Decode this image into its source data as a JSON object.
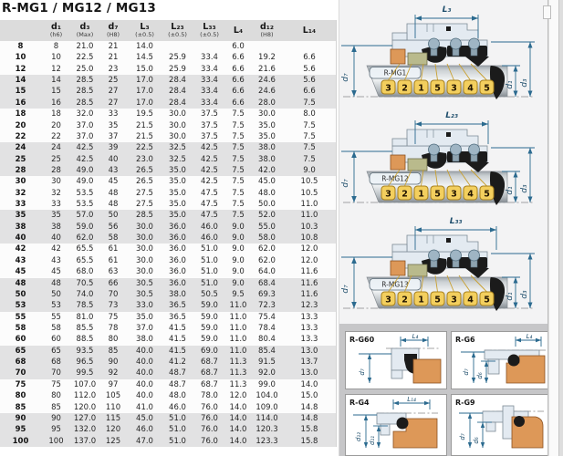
{
  "title": "R-MG1 / MG12 / MG13",
  "table": {
    "headers": [
      {
        "main": "",
        "note": ""
      },
      {
        "main": "d₁",
        "note": "(h6)"
      },
      {
        "main": "d₃",
        "note": "(Max)"
      },
      {
        "main": "d₇",
        "note": "(H8)"
      },
      {
        "main": "L₃",
        "note": "(±0.5)"
      },
      {
        "main": "L₂₃",
        "note": "(±0.5)"
      },
      {
        "main": "L₃₃",
        "note": "(±0.5)"
      },
      {
        "main": "L₄",
        "note": ""
      },
      {
        "main": "d₁₂",
        "note": "(H8)"
      },
      {
        "main": "L₁₄",
        "note": ""
      }
    ],
    "rows": [
      [
        "8",
        "8",
        "21.0",
        "21",
        "14.0",
        "",
        "",
        "6.0",
        "",
        ""
      ],
      [
        "10",
        "10",
        "22.5",
        "21",
        "14.5",
        "25.9",
        "33.4",
        "6.6",
        "19.2",
        "6.6"
      ],
      [
        "12",
        "12",
        "25.0",
        "23",
        "15.0",
        "25.9",
        "33.4",
        "6.6",
        "21.6",
        "5.6"
      ],
      [
        "14",
        "14",
        "28.5",
        "25",
        "17.0",
        "28.4",
        "33.4",
        "6.6",
        "24.6",
        "5.6"
      ],
      [
        "15",
        "15",
        "28.5",
        "27",
        "17.0",
        "28.4",
        "33.4",
        "6.6",
        "24.6",
        "6.6"
      ],
      [
        "16",
        "16",
        "28.5",
        "27",
        "17.0",
        "28.4",
        "33.4",
        "6.6",
        "28.0",
        "7.5"
      ],
      [
        "18",
        "18",
        "32.0",
        "33",
        "19.5",
        "30.0",
        "37.5",
        "7.5",
        "30.0",
        "8.0"
      ],
      [
        "20",
        "20",
        "37.0",
        "35",
        "21.5",
        "30.0",
        "37.5",
        "7.5",
        "35.0",
        "7.5"
      ],
      [
        "22",
        "22",
        "37.0",
        "37",
        "21.5",
        "30.0",
        "37.5",
        "7.5",
        "35.0",
        "7.5"
      ],
      [
        "24",
        "24",
        "42.5",
        "39",
        "22.5",
        "32.5",
        "42.5",
        "7.5",
        "38.0",
        "7.5"
      ],
      [
        "25",
        "25",
        "42.5",
        "40",
        "23.0",
        "32.5",
        "42.5",
        "7.5",
        "38.0",
        "7.5"
      ],
      [
        "28",
        "28",
        "49.0",
        "43",
        "26.5",
        "35.0",
        "42.5",
        "7.5",
        "42.0",
        "9.0"
      ],
      [
        "30",
        "30",
        "49.0",
        "45",
        "26.5",
        "35.0",
        "42.5",
        "7.5",
        "45.0",
        "10.5"
      ],
      [
        "32",
        "32",
        "53.5",
        "48",
        "27.5",
        "35.0",
        "47.5",
        "7.5",
        "48.0",
        "10.5"
      ],
      [
        "33",
        "33",
        "53.5",
        "48",
        "27.5",
        "35.0",
        "47.5",
        "7.5",
        "50.0",
        "11.0"
      ],
      [
        "35",
        "35",
        "57.0",
        "50",
        "28.5",
        "35.0",
        "47.5",
        "7.5",
        "52.0",
        "11.0"
      ],
      [
        "38",
        "38",
        "59.0",
        "56",
        "30.0",
        "36.0",
        "46.0",
        "9.0",
        "55.0",
        "10.3"
      ],
      [
        "40",
        "40",
        "62.0",
        "58",
        "30.0",
        "36.0",
        "46.0",
        "9.0",
        "58.0",
        "10.8"
      ],
      [
        "42",
        "42",
        "65.5",
        "61",
        "30.0",
        "36.0",
        "51.0",
        "9.0",
        "62.0",
        "12.0"
      ],
      [
        "43",
        "43",
        "65.5",
        "61",
        "30.0",
        "36.0",
        "51.0",
        "9.0",
        "62.0",
        "12.0"
      ],
      [
        "45",
        "45",
        "68.0",
        "63",
        "30.0",
        "36.0",
        "51.0",
        "9.0",
        "64.0",
        "11.6"
      ],
      [
        "48",
        "48",
        "70.5",
        "66",
        "30.5",
        "36.0",
        "51.0",
        "9.0",
        "68.4",
        "11.6"
      ],
      [
        "50",
        "50",
        "74.0",
        "70",
        "30.5",
        "38.0",
        "50.5",
        "9.5",
        "69.3",
        "11.6"
      ],
      [
        "53",
        "53",
        "78.5",
        "73",
        "33.0",
        "36.5",
        "59.0",
        "11.0",
        "72.3",
        "12.3"
      ],
      [
        "55",
        "55",
        "81.0",
        "75",
        "35.0",
        "36.5",
        "59.0",
        "11.0",
        "75.4",
        "13.3"
      ],
      [
        "58",
        "58",
        "85.5",
        "78",
        "37.0",
        "41.5",
        "59.0",
        "11.0",
        "78.4",
        "13.3"
      ],
      [
        "60",
        "60",
        "88.5",
        "80",
        "38.0",
        "41.5",
        "59.0",
        "11.0",
        "80.4",
        "13.3"
      ],
      [
        "65",
        "65",
        "93.5",
        "85",
        "40.0",
        "41.5",
        "69.0",
        "11.0",
        "85.4",
        "13.0"
      ],
      [
        "68",
        "68",
        "96.5",
        "90",
        "40.0",
        "41.2",
        "68.7",
        "11.3",
        "91.5",
        "13.7"
      ],
      [
        "70",
        "70",
        "99.5",
        "92",
        "40.0",
        "48.7",
        "68.7",
        "11.3",
        "92.0",
        "13.0"
      ],
      [
        "75",
        "75",
        "107.0",
        "97",
        "40.0",
        "48.7",
        "68.7",
        "11.3",
        "99.0",
        "14.0"
      ],
      [
        "80",
        "80",
        "112.0",
        "105",
        "40.0",
        "48.0",
        "78.0",
        "12.0",
        "104.0",
        "15.0"
      ],
      [
        "85",
        "85",
        "120.0",
        "110",
        "41.0",
        "46.0",
        "76.0",
        "14.0",
        "109.0",
        "14.8"
      ],
      [
        "90",
        "90",
        "127.0",
        "115",
        "45.0",
        "51.0",
        "76.0",
        "14.0",
        "114.0",
        "14.8"
      ],
      [
        "95",
        "95",
        "132.0",
        "120",
        "46.0",
        "51.0",
        "76.0",
        "14.0",
        "120.3",
        "15.8"
      ],
      [
        "100",
        "100",
        "137.0",
        "125",
        "47.0",
        "51.0",
        "76.0",
        "14.0",
        "123.3",
        "15.8"
      ]
    ]
  },
  "diagrams": [
    {
      "label": "R-MG1",
      "top_dim": "L₃",
      "left_dim": "d₇",
      "right_dim_inner": "d₁",
      "right_dim_outer": "d₃",
      "callouts": [
        "3",
        "2",
        "1",
        "5",
        "3",
        "4",
        "5"
      ]
    },
    {
      "label": "R-MG12",
      "top_dim": "L₂₃",
      "left_dim": "d₇",
      "right_dim_inner": "d₁",
      "right_dim_outer": "d₃",
      "callouts": [
        "3",
        "2",
        "1",
        "5",
        "3",
        "4",
        "5"
      ]
    },
    {
      "label": "R-MG13",
      "top_dim": "L₃₃",
      "left_dim": "d₇",
      "right_dim_inner": "d₁",
      "right_dim_outer": "d₃",
      "callouts": [
        "3",
        "2",
        "1",
        "5",
        "3",
        "4",
        "5"
      ]
    }
  ],
  "panels": [
    {
      "label": "R-G60",
      "top_dim": "L₄",
      "dims": [
        "d₇"
      ]
    },
    {
      "label": "R-G6",
      "top_dim": "L₄",
      "dims": [
        "d₇",
        "d₆"
      ]
    },
    {
      "label": "R-G4",
      "top_dim": "L₁₄",
      "dims": [
        "d₁₂",
        "d₁₁"
      ]
    },
    {
      "label": "R-G9",
      "top_dim": "",
      "dims": [
        "d₇",
        "d₆"
      ]
    }
  ],
  "colors": {
    "dimension_line": "#2b6a8f",
    "callout_box": "#f3cf5e",
    "seat_orange": "#dd9858",
    "housing_blue": "#e3eaf1",
    "bellows_black": "#1b1b1b",
    "row_stripe": "#e2e2e3",
    "header_bg": "#dcdcdc"
  }
}
